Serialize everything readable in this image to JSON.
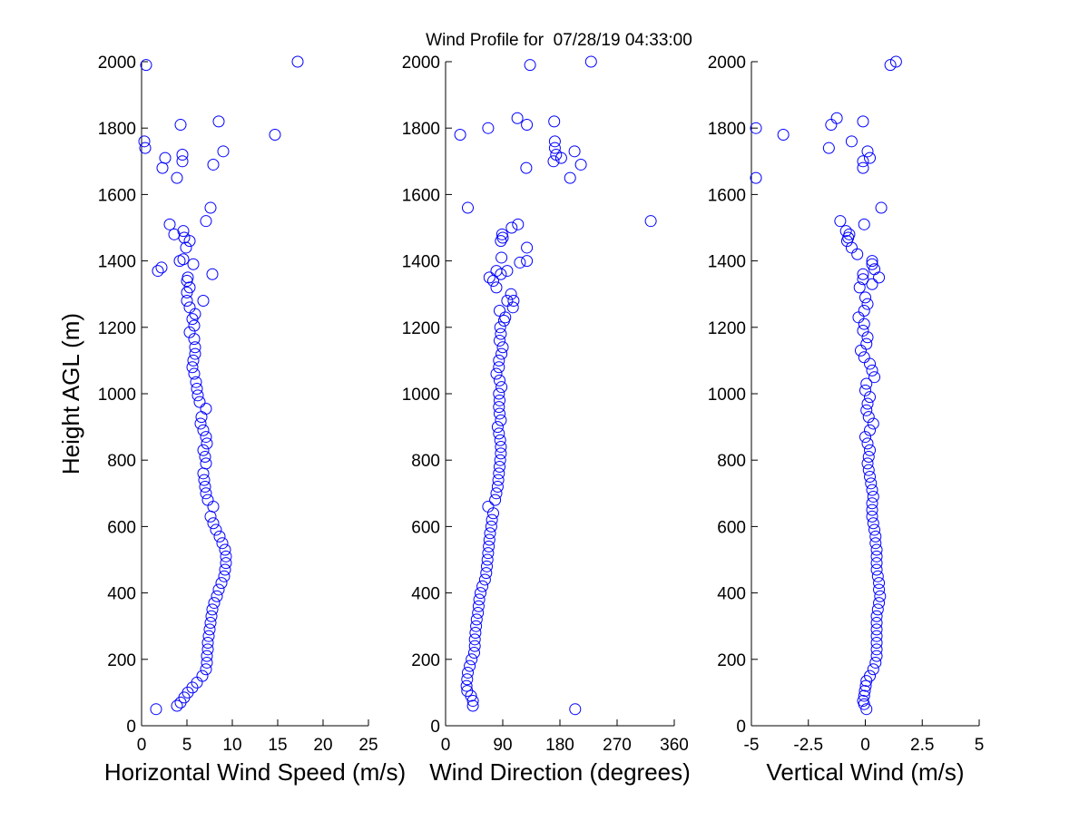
{
  "title": "Wind Profile for  07/28/19 04:33:00",
  "chart_data": [
    {
      "type": "scatter",
      "xlabel": "Horizontal Wind Speed (m/s)",
      "ylabel": "Height AGL (m)",
      "xlim": [
        0,
        25
      ],
      "ylim": [
        0,
        2000
      ],
      "xticks": [
        "0",
        "5",
        "10",
        "15",
        "20",
        "25"
      ],
      "yticks": [
        "0",
        "200",
        "400",
        "600",
        "800",
        "1000",
        "1200",
        "1400",
        "1600",
        "1800",
        "2000"
      ],
      "marker_color": "#0000ff",
      "marker": "open circle",
      "grid": false,
      "points": [
        [
          1.6,
          50
        ],
        [
          3.9,
          60
        ],
        [
          4.3,
          70
        ],
        [
          4.7,
          85
        ],
        [
          5.1,
          100
        ],
        [
          5.6,
          115
        ],
        [
          6.1,
          130
        ],
        [
          6.7,
          150
        ],
        [
          7.1,
          170
        ],
        [
          7.2,
          190
        ],
        [
          7.2,
          210
        ],
        [
          7.3,
          230
        ],
        [
          7.3,
          250
        ],
        [
          7.4,
          270
        ],
        [
          7.5,
          290
        ],
        [
          7.6,
          310
        ],
        [
          7.7,
          330
        ],
        [
          7.8,
          350
        ],
        [
          8.0,
          370
        ],
        [
          8.3,
          390
        ],
        [
          8.5,
          410
        ],
        [
          8.8,
          430
        ],
        [
          9.1,
          450
        ],
        [
          9.2,
          470
        ],
        [
          9.3,
          490
        ],
        [
          9.3,
          510
        ],
        [
          9.2,
          530
        ],
        [
          8.9,
          550
        ],
        [
          8.6,
          570
        ],
        [
          8.2,
          590
        ],
        [
          7.9,
          610
        ],
        [
          7.6,
          630
        ],
        [
          7.9,
          660
        ],
        [
          7.3,
          680
        ],
        [
          7.1,
          700
        ],
        [
          7.0,
          720
        ],
        [
          6.9,
          740
        ],
        [
          6.8,
          760
        ],
        [
          7.1,
          790
        ],
        [
          7.0,
          810
        ],
        [
          6.8,
          830
        ],
        [
          7.2,
          850
        ],
        [
          7.1,
          870
        ],
        [
          6.8,
          890
        ],
        [
          6.5,
          910
        ],
        [
          6.6,
          930
        ],
        [
          7.1,
          955
        ],
        [
          6.4,
          975
        ],
        [
          6.2,
          995
        ],
        [
          6.1,
          1015
        ],
        [
          6.0,
          1035
        ],
        [
          5.8,
          1060
        ],
        [
          5.6,
          1080
        ],
        [
          5.7,
          1100
        ],
        [
          5.9,
          1120
        ],
        [
          5.9,
          1140
        ],
        [
          5.8,
          1165
        ],
        [
          5.3,
          1185
        ],
        [
          5.8,
          1205
        ],
        [
          5.6,
          1225
        ],
        [
          5.9,
          1240
        ],
        [
          5.3,
          1260
        ],
        [
          5.0,
          1280
        ],
        [
          6.8,
          1280
        ],
        [
          5.0,
          1305
        ],
        [
          5.3,
          1320
        ],
        [
          5.0,
          1340
        ],
        [
          5.1,
          1350
        ],
        [
          1.8,
          1370
        ],
        [
          2.2,
          1380
        ],
        [
          7.8,
          1360
        ],
        [
          4.2,
          1400
        ],
        [
          4.6,
          1405
        ],
        [
          5.7,
          1390
        ],
        [
          4.9,
          1440
        ],
        [
          5.3,
          1460
        ],
        [
          4.7,
          1470
        ],
        [
          3.6,
          1480
        ],
        [
          4.6,
          1490
        ],
        [
          3.1,
          1510
        ],
        [
          7.1,
          1520
        ],
        [
          7.6,
          1560
        ],
        [
          3.9,
          1650
        ],
        [
          2.3,
          1680
        ],
        [
          7.9,
          1690
        ],
        [
          4.5,
          1700
        ],
        [
          2.6,
          1710
        ],
        [
          4.5,
          1720
        ],
        [
          9.0,
          1730
        ],
        [
          0.4,
          1740
        ],
        [
          0.3,
          1760
        ],
        [
          14.7,
          1780
        ],
        [
          4.3,
          1810
        ],
        [
          8.5,
          1820
        ],
        [
          0.5,
          1990
        ],
        [
          17.2,
          2000
        ]
      ]
    },
    {
      "type": "scatter",
      "xlabel": "Wind Direction (degrees)",
      "ylabel": "",
      "xlim": [
        0,
        360
      ],
      "ylim": [
        0,
        2000
      ],
      "xticks": [
        "0",
        "90",
        "180",
        "270",
        "360"
      ],
      "yticks": [
        "0",
        "200",
        "400",
        "600",
        "800",
        "1000",
        "1200",
        "1400",
        "1600",
        "1800",
        "2000"
      ],
      "marker_color": "#0000ff",
      "marker": "open circle",
      "grid": false,
      "points": [
        [
          204,
          50
        ],
        [
          43,
          60
        ],
        [
          43,
          75
        ],
        [
          40,
          90
        ],
        [
          34,
          105
        ],
        [
          33,
          120
        ],
        [
          34,
          140
        ],
        [
          35,
          160
        ],
        [
          38,
          180
        ],
        [
          41,
          200
        ],
        [
          45,
          220
        ],
        [
          46,
          240
        ],
        [
          46,
          260
        ],
        [
          47,
          280
        ],
        [
          48,
          300
        ],
        [
          49,
          320
        ],
        [
          51,
          340
        ],
        [
          52,
          360
        ],
        [
          53,
          380
        ],
        [
          55,
          400
        ],
        [
          58,
          420
        ],
        [
          62,
          440
        ],
        [
          64,
          460
        ],
        [
          65,
          480
        ],
        [
          66,
          500
        ],
        [
          67,
          520
        ],
        [
          68,
          540
        ],
        [
          69,
          560
        ],
        [
          70,
          580
        ],
        [
          72,
          600
        ],
        [
          73,
          620
        ],
        [
          75,
          640
        ],
        [
          67,
          660
        ],
        [
          78,
          680
        ],
        [
          80,
          700
        ],
        [
          82,
          720
        ],
        [
          83,
          740
        ],
        [
          84,
          760
        ],
        [
          85,
          780
        ],
        [
          86,
          800
        ],
        [
          87,
          820
        ],
        [
          87,
          840
        ],
        [
          86,
          860
        ],
        [
          84,
          880
        ],
        [
          82,
          900
        ],
        [
          87,
          920
        ],
        [
          85,
          940
        ],
        [
          84,
          960
        ],
        [
          85,
          980
        ],
        [
          84,
          1000
        ],
        [
          88,
          1020
        ],
        [
          85,
          1040
        ],
        [
          80,
          1060
        ],
        [
          84,
          1080
        ],
        [
          84,
          1100
        ],
        [
          88,
          1120
        ],
        [
          90,
          1140
        ],
        [
          85,
          1160
        ],
        [
          87,
          1180
        ],
        [
          86,
          1200
        ],
        [
          92,
          1220
        ],
        [
          94,
          1230
        ],
        [
          85,
          1250
        ],
        [
          106,
          1260
        ],
        [
          107,
          1280
        ],
        [
          97,
          1280
        ],
        [
          103,
          1300
        ],
        [
          80,
          1320
        ],
        [
          75,
          1340
        ],
        [
          69,
          1350
        ],
        [
          87,
          1360
        ],
        [
          80,
          1370
        ],
        [
          97,
          1370
        ],
        [
          117,
          1395
        ],
        [
          128,
          1400
        ],
        [
          88,
          1410
        ],
        [
          128,
          1440
        ],
        [
          87,
          1460
        ],
        [
          90,
          1470
        ],
        [
          89,
          1480
        ],
        [
          104,
          1500
        ],
        [
          114,
          1510
        ],
        [
          323,
          1520
        ],
        [
          35,
          1560
        ],
        [
          196,
          1650
        ],
        [
          127,
          1680
        ],
        [
          213,
          1690
        ],
        [
          170,
          1700
        ],
        [
          182,
          1710
        ],
        [
          174,
          1720
        ],
        [
          203,
          1730
        ],
        [
          172,
          1740
        ],
        [
          172,
          1760
        ],
        [
          23,
          1780
        ],
        [
          67,
          1800
        ],
        [
          128,
          1810
        ],
        [
          171,
          1820
        ],
        [
          113,
          1830
        ],
        [
          133,
          1990
        ],
        [
          229,
          2000
        ]
      ]
    },
    {
      "type": "scatter",
      "xlabel": "Vertical Wind (m/s)",
      "ylabel": "",
      "xlim": [
        -5,
        5
      ],
      "ylim": [
        0,
        2000
      ],
      "xticks": [
        "-5",
        "-2.5",
        "0",
        "2.5",
        "5"
      ],
      "yticks": [
        "0",
        "200",
        "400",
        "600",
        "800",
        "1000",
        "1200",
        "1400",
        "1600",
        "1800",
        "2000"
      ],
      "marker_color": "#0000ff",
      "marker": "open circle",
      "grid": false,
      "points": [
        [
          0.05,
          50
        ],
        [
          -0.05,
          65
        ],
        [
          -0.1,
          75
        ],
        [
          -0.05,
          90
        ],
        [
          -0.02,
          105
        ],
        [
          0.02,
          120
        ],
        [
          0.05,
          135
        ],
        [
          0.2,
          150
        ],
        [
          0.35,
          170
        ],
        [
          0.45,
          190
        ],
        [
          0.5,
          210
        ],
        [
          0.5,
          230
        ],
        [
          0.5,
          250
        ],
        [
          0.5,
          270
        ],
        [
          0.5,
          290
        ],
        [
          0.5,
          310
        ],
        [
          0.5,
          330
        ],
        [
          0.55,
          350
        ],
        [
          0.6,
          370
        ],
        [
          0.65,
          390
        ],
        [
          0.6,
          410
        ],
        [
          0.6,
          430
        ],
        [
          0.55,
          450
        ],
        [
          0.5,
          470
        ],
        [
          0.5,
          490
        ],
        [
          0.5,
          510
        ],
        [
          0.5,
          530
        ],
        [
          0.45,
          550
        ],
        [
          0.45,
          570
        ],
        [
          0.4,
          590
        ],
        [
          0.35,
          610
        ],
        [
          0.3,
          630
        ],
        [
          0.3,
          650
        ],
        [
          0.3,
          670
        ],
        [
          0.35,
          690
        ],
        [
          0.3,
          710
        ],
        [
          0.25,
          730
        ],
        [
          0.2,
          750
        ],
        [
          0.15,
          770
        ],
        [
          0.1,
          790
        ],
        [
          0.15,
          810
        ],
        [
          0.2,
          830
        ],
        [
          0.1,
          850
        ],
        [
          0.0,
          870
        ],
        [
          0.2,
          890
        ],
        [
          0.35,
          910
        ],
        [
          0.15,
          930
        ],
        [
          0.05,
          950
        ],
        [
          0.1,
          970
        ],
        [
          0.2,
          990
        ],
        [
          0.0,
          1010
        ],
        [
          0.05,
          1030
        ],
        [
          0.4,
          1050
        ],
        [
          0.3,
          1070
        ],
        [
          0.2,
          1090
        ],
        [
          -0.05,
          1110
        ],
        [
          -0.2,
          1130
        ],
        [
          0.05,
          1150
        ],
        [
          0.1,
          1170
        ],
        [
          -0.1,
          1190
        ],
        [
          -0.05,
          1210
        ],
        [
          -0.3,
          1230
        ],
        [
          -0.05,
          1250
        ],
        [
          0.1,
          1270
        ],
        [
          0.0,
          1290
        ],
        [
          -0.25,
          1320
        ],
        [
          0.3,
          1330
        ],
        [
          -0.1,
          1345
        ],
        [
          0.6,
          1350
        ],
        [
          -0.1,
          1360
        ],
        [
          0.4,
          1375
        ],
        [
          0.3,
          1390
        ],
        [
          0.3,
          1400
        ],
        [
          -0.35,
          1420
        ],
        [
          -0.6,
          1440
        ],
        [
          -0.8,
          1460
        ],
        [
          -0.75,
          1470
        ],
        [
          -0.7,
          1480
        ],
        [
          -0.85,
          1490
        ],
        [
          -0.05,
          1510
        ],
        [
          -1.1,
          1520
        ],
        [
          0.7,
          1560
        ],
        [
          -4.8,
          1650
        ],
        [
          -0.1,
          1680
        ],
        [
          -0.1,
          1700
        ],
        [
          0.2,
          1710
        ],
        [
          0.1,
          1730
        ],
        [
          -1.6,
          1740
        ],
        [
          -0.6,
          1760
        ],
        [
          -3.6,
          1780
        ],
        [
          -4.8,
          1800
        ],
        [
          -1.5,
          1810
        ],
        [
          -0.1,
          1820
        ],
        [
          -1.25,
          1830
        ],
        [
          1.1,
          1990
        ],
        [
          1.35,
          2000
        ]
      ]
    }
  ]
}
